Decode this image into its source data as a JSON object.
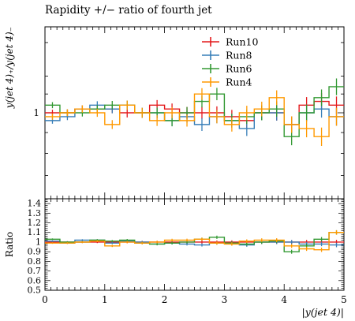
{
  "chart_data": {
    "type": "line",
    "title": "Rapidity +/− ratio of fourth jet",
    "xlabel": "|y(jet 4)|",
    "ylabel": "y(jet 4)₊/y(jet 4)₋",
    "ratio_ylabel": "Ratio",
    "xlim": [
      0,
      5
    ],
    "x_ticks": [
      "0",
      "1",
      "2",
      "3",
      "4",
      "5"
    ],
    "main_y_tick": "1",
    "ratio_ylim": [
      0.5,
      1.45
    ],
    "ratio_y_ticks": [
      "0.5",
      "0.6",
      "0.7",
      "0.8",
      "0.9",
      "1",
      "1.1",
      "1.2",
      "1.3",
      "1.4"
    ],
    "legend_position": "top-center",
    "bin_edges": [
      0,
      0.25,
      0.5,
      0.75,
      1.0,
      1.25,
      1.5,
      1.75,
      2.0,
      2.25,
      2.5,
      2.75,
      3.0,
      3.25,
      3.5,
      3.75,
      4.0,
      4.25,
      4.5,
      4.75,
      5.0
    ],
    "series": [
      {
        "name": "Run10",
        "color": "#e41a1c",
        "values": [
          1.0,
          1.0,
          1.01,
          1.01,
          1.01,
          1.0,
          1.0,
          1.02,
          1.01,
          1.0,
          1.0,
          1.0,
          0.99,
          0.98,
          1.0,
          1.0,
          0.97,
          1.02,
          1.03,
          1.02
        ],
        "ratio": [
          1.0,
          1.0,
          1.0,
          1.0,
          1.0,
          1.0,
          1.0,
          1.0,
          1.0,
          1.0,
          1.0,
          1.0,
          1.0,
          1.0,
          1.0,
          1.0,
          1.0,
          1.0,
          1.0,
          1.0
        ]
      },
      {
        "name": "Run8",
        "color": "#377eb8",
        "values": [
          0.98,
          0.99,
          1.01,
          1.02,
          1.01,
          1.02,
          1.0,
          1.0,
          0.98,
          0.99,
          0.97,
          0.99,
          0.98,
          0.96,
          1.0,
          1.0,
          0.97,
          1.0,
          1.01,
          0.99
        ],
        "ratio": [
          1.01,
          0.99,
          1.02,
          1.02,
          0.99,
          1.01,
          1.0,
          0.98,
          0.99,
          0.98,
          0.97,
          0.99,
          0.99,
          0.97,
          1.0,
          1.0,
          1.0,
          0.98,
          0.98,
          0.97
        ]
      },
      {
        "name": "Run6",
        "color": "#339933",
        "values": [
          1.02,
          1.0,
          1.0,
          1.01,
          1.02,
          1.02,
          1.0,
          1.0,
          0.98,
          1.0,
          1.03,
          1.05,
          0.98,
          0.99,
          1.0,
          1.01,
          0.94,
          1.0,
          1.04,
          1.07
        ],
        "ratio": [
          1.03,
          1.0,
          1.0,
          1.02,
          1.01,
          1.02,
          0.99,
          0.98,
          0.99,
          1.0,
          1.03,
          1.05,
          0.99,
          0.98,
          1.0,
          1.01,
          0.9,
          0.96,
          1.03,
          1.1
        ]
      },
      {
        "name": "Run4",
        "color": "#ff9900",
        "values": [
          0.99,
          1.0,
          1.01,
          1.0,
          0.97,
          1.02,
          1.0,
          0.98,
          1.0,
          0.98,
          1.05,
          0.99,
          0.97,
          1.0,
          1.01,
          1.04,
          0.97,
          0.96,
          0.94,
          0.99
        ],
        "ratio": [
          0.99,
          0.99,
          1.0,
          1.01,
          0.96,
          1.0,
          0.99,
          1.0,
          1.02,
          1.02,
          1.03,
          0.99,
          0.98,
          1.01,
          1.02,
          1.02,
          0.96,
          0.93,
          0.92,
          1.1
        ]
      }
    ]
  }
}
